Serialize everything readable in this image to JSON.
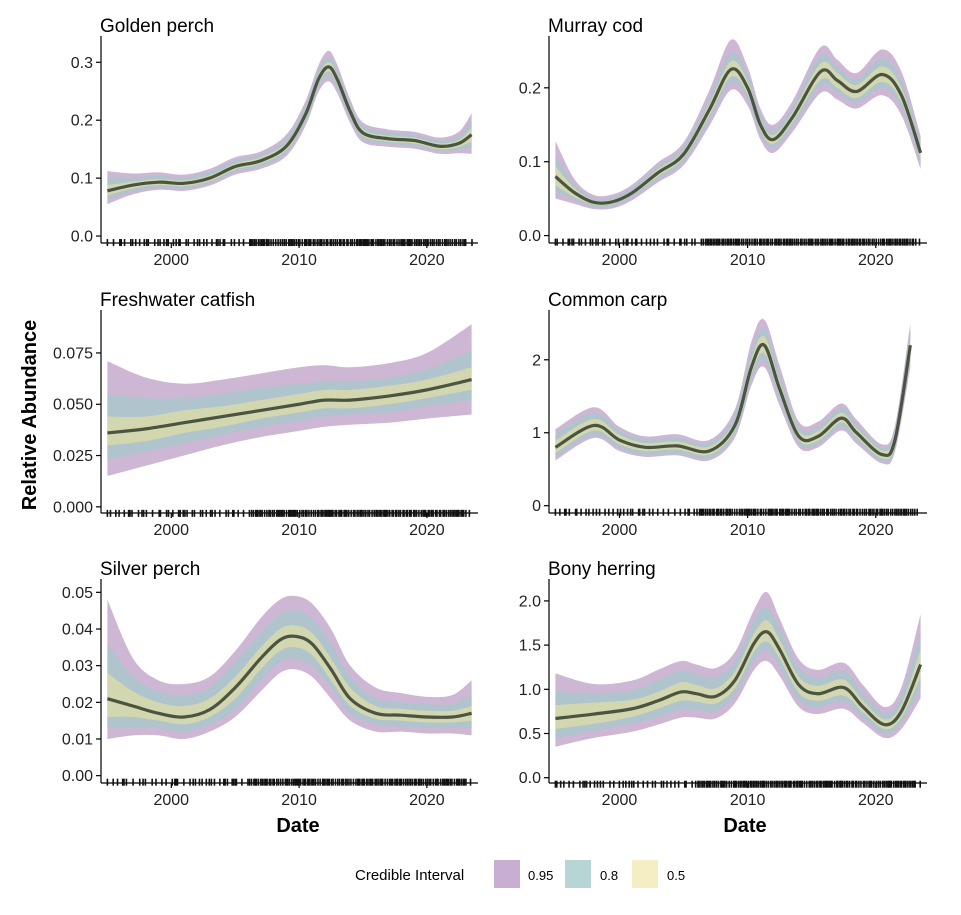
{
  "ylabel": "Relative Abundance",
  "xlabel": "Date",
  "legend": {
    "title": "Credible Interval",
    "items": [
      {
        "label": "0.95",
        "color": "#c8aed1"
      },
      {
        "label": "0.8",
        "color": "#b7d5d4"
      },
      {
        "label": "0.5",
        "color": "#f5eec4"
      }
    ]
  },
  "colors": {
    "band95": "#c4aacd",
    "band80": "#a9c7cb",
    "band50": "#d9daa9",
    "line": "#4b5440",
    "axis": "#000000"
  },
  "chart_data": [
    {
      "type": "line",
      "title": "Golden perch",
      "xlim": [
        1994.5,
        2024
      ],
      "ylim": [
        -0.012,
        0.335
      ],
      "xticks": [
        2000,
        2010,
        2020
      ],
      "xtick_labels": [
        "2000",
        "2010",
        "2020"
      ],
      "yticks": [
        0.0,
        0.1,
        0.2,
        0.3
      ],
      "ytick_labels": [
        "0.0",
        "0.1",
        "0.2",
        "0.3"
      ],
      "x": [
        1995,
        1997,
        1999,
        2001,
        2003,
        2005,
        2007,
        2009,
        2010.5,
        2011.5,
        2012.3,
        2013,
        2014,
        2015,
        2017,
        2019,
        2021,
        2022.5,
        2023.5
      ],
      "mean": [
        0.078,
        0.088,
        0.093,
        0.091,
        0.1,
        0.12,
        0.13,
        0.155,
        0.21,
        0.27,
        0.292,
        0.27,
        0.215,
        0.178,
        0.168,
        0.165,
        0.155,
        0.16,
        0.175
      ],
      "lo95": [
        0.055,
        0.072,
        0.08,
        0.078,
        0.087,
        0.106,
        0.116,
        0.138,
        0.19,
        0.248,
        0.267,
        0.246,
        0.195,
        0.162,
        0.154,
        0.151,
        0.142,
        0.143,
        0.142
      ],
      "hi95": [
        0.112,
        0.108,
        0.11,
        0.106,
        0.116,
        0.136,
        0.146,
        0.175,
        0.233,
        0.294,
        0.32,
        0.295,
        0.236,
        0.196,
        0.184,
        0.18,
        0.17,
        0.18,
        0.212
      ],
      "lo80": [
        0.063,
        0.077,
        0.084,
        0.082,
        0.091,
        0.111,
        0.12,
        0.144,
        0.197,
        0.256,
        0.276,
        0.254,
        0.202,
        0.168,
        0.159,
        0.156,
        0.147,
        0.149,
        0.153
      ],
      "hi80": [
        0.1,
        0.101,
        0.104,
        0.101,
        0.111,
        0.131,
        0.141,
        0.168,
        0.225,
        0.285,
        0.309,
        0.286,
        0.229,
        0.19,
        0.179,
        0.175,
        0.165,
        0.173,
        0.199
      ],
      "lo50": [
        0.07,
        0.082,
        0.088,
        0.086,
        0.095,
        0.115,
        0.125,
        0.149,
        0.203,
        0.263,
        0.284,
        0.262,
        0.208,
        0.173,
        0.163,
        0.16,
        0.15,
        0.154,
        0.163
      ],
      "hi50": [
        0.088,
        0.094,
        0.098,
        0.096,
        0.105,
        0.125,
        0.136,
        0.161,
        0.217,
        0.277,
        0.3,
        0.278,
        0.222,
        0.184,
        0.173,
        0.17,
        0.16,
        0.166,
        0.187
      ]
    },
    {
      "type": "line",
      "title": "Murray cod",
      "xlim": [
        1994.5,
        2024
      ],
      "ylim": [
        -0.01,
        0.262
      ],
      "xticks": [
        2000,
        2010,
        2020
      ],
      "xtick_labels": [
        "2000",
        "2010",
        "2020"
      ],
      "yticks": [
        0.0,
        0.1,
        0.2
      ],
      "ytick_labels": [
        "0.0",
        "0.1",
        "0.2"
      ],
      "x": [
        1995,
        1996.5,
        1998,
        1999.5,
        2001,
        2003,
        2005,
        2007,
        2008.7,
        2010,
        2011,
        2012,
        2013.5,
        2015.7,
        2017,
        2018.5,
        2020.5,
        2022,
        2023.5
      ],
      "mean": [
        0.08,
        0.058,
        0.045,
        0.046,
        0.058,
        0.085,
        0.11,
        0.17,
        0.225,
        0.2,
        0.15,
        0.13,
        0.16,
        0.222,
        0.21,
        0.195,
        0.218,
        0.19,
        0.112
      ],
      "lo95": [
        0.05,
        0.043,
        0.036,
        0.037,
        0.048,
        0.072,
        0.095,
        0.148,
        0.197,
        0.176,
        0.13,
        0.112,
        0.14,
        0.193,
        0.184,
        0.172,
        0.19,
        0.163,
        0.09
      ],
      "hi95": [
        0.128,
        0.076,
        0.055,
        0.056,
        0.069,
        0.099,
        0.126,
        0.196,
        0.265,
        0.228,
        0.172,
        0.15,
        0.182,
        0.255,
        0.238,
        0.22,
        0.252,
        0.222,
        0.135
      ],
      "lo80": [
        0.06,
        0.048,
        0.039,
        0.04,
        0.052,
        0.076,
        0.1,
        0.156,
        0.207,
        0.185,
        0.137,
        0.119,
        0.147,
        0.203,
        0.193,
        0.18,
        0.2,
        0.173,
        0.098
      ],
      "hi80": [
        0.108,
        0.069,
        0.051,
        0.052,
        0.065,
        0.094,
        0.12,
        0.186,
        0.248,
        0.218,
        0.164,
        0.142,
        0.174,
        0.243,
        0.228,
        0.211,
        0.24,
        0.21,
        0.127
      ],
      "lo50": [
        0.068,
        0.052,
        0.042,
        0.043,
        0.055,
        0.08,
        0.105,
        0.162,
        0.215,
        0.192,
        0.143,
        0.124,
        0.153,
        0.211,
        0.2,
        0.186,
        0.208,
        0.181,
        0.104
      ],
      "hi50": [
        0.094,
        0.064,
        0.048,
        0.049,
        0.061,
        0.09,
        0.115,
        0.178,
        0.236,
        0.209,
        0.157,
        0.136,
        0.167,
        0.233,
        0.22,
        0.204,
        0.229,
        0.2,
        0.12
      ]
    },
    {
      "type": "line",
      "title": "Freshwater catfish",
      "xlim": [
        1994.5,
        2024
      ],
      "ylim": [
        -0.003,
        0.093
      ],
      "xticks": [
        2000,
        2010,
        2020
      ],
      "xtick_labels": [
        "2000",
        "2010",
        "2020"
      ],
      "yticks": [
        0.0,
        0.025,
        0.05,
        0.075
      ],
      "ytick_labels": [
        "0.000",
        "0.025",
        "0.050",
        "0.075"
      ],
      "x": [
        1995,
        1998,
        2001,
        2004,
        2007,
        2010,
        2012,
        2014,
        2017,
        2020,
        2023.5
      ],
      "mean": [
        0.036,
        0.038,
        0.041,
        0.044,
        0.047,
        0.05,
        0.052,
        0.052,
        0.054,
        0.057,
        0.062
      ],
      "lo95": [
        0.015,
        0.02,
        0.025,
        0.03,
        0.034,
        0.037,
        0.039,
        0.04,
        0.041,
        0.043,
        0.045
      ],
      "hi95": [
        0.071,
        0.063,
        0.06,
        0.062,
        0.065,
        0.068,
        0.069,
        0.068,
        0.07,
        0.075,
        0.089
      ],
      "lo80": [
        0.023,
        0.027,
        0.031,
        0.035,
        0.039,
        0.042,
        0.044,
        0.045,
        0.046,
        0.049,
        0.052
      ],
      "hi80": [
        0.055,
        0.053,
        0.053,
        0.055,
        0.058,
        0.06,
        0.061,
        0.061,
        0.063,
        0.067,
        0.076
      ],
      "lo50": [
        0.03,
        0.032,
        0.036,
        0.039,
        0.043,
        0.046,
        0.048,
        0.048,
        0.05,
        0.053,
        0.057
      ],
      "hi50": [
        0.044,
        0.044,
        0.047,
        0.049,
        0.052,
        0.055,
        0.057,
        0.057,
        0.059,
        0.062,
        0.068
      ]
    },
    {
      "type": "line",
      "title": "Common carp",
      "xlim": [
        1994.5,
        2024
      ],
      "ylim": [
        -0.1,
        2.6
      ],
      "xticks": [
        2000,
        2010,
        2020
      ],
      "xtick_labels": [
        "2000",
        "2010",
        "2020"
      ],
      "yticks": [
        0,
        1,
        2
      ],
      "ytick_labels": [
        "0",
        "1",
        "2"
      ],
      "x": [
        1995,
        1998,
        2000,
        2002,
        2004.5,
        2007,
        2009,
        2010.3,
        2011.3,
        2012.5,
        2014,
        2015.5,
        2017.3,
        2018.5,
        2020.5,
        2021.5,
        2022.7
      ],
      "mean": [
        0.8,
        1.1,
        0.9,
        0.8,
        0.82,
        0.75,
        1.1,
        1.9,
        2.2,
        1.6,
        0.95,
        0.95,
        1.2,
        1.0,
        0.7,
        0.9,
        2.2
      ],
      "lo95": [
        0.62,
        0.93,
        0.75,
        0.67,
        0.69,
        0.62,
        0.93,
        1.65,
        1.9,
        1.37,
        0.8,
        0.8,
        1.03,
        0.85,
        0.58,
        0.74,
        1.9
      ],
      "hi95": [
        1.05,
        1.35,
        1.08,
        0.95,
        0.98,
        0.9,
        1.32,
        2.25,
        2.55,
        1.92,
        1.15,
        1.15,
        1.4,
        1.18,
        0.84,
        1.1,
        2.5
      ],
      "lo80": [
        0.66,
        0.97,
        0.79,
        0.7,
        0.72,
        0.65,
        0.98,
        1.72,
        1.99,
        1.44,
        0.85,
        0.84,
        1.08,
        0.89,
        0.61,
        0.78,
        1.98
      ],
      "hi80": [
        0.98,
        1.27,
        1.03,
        0.91,
        0.93,
        0.86,
        1.25,
        2.12,
        2.43,
        1.81,
        1.08,
        1.08,
        1.34,
        1.12,
        0.8,
        1.04,
        2.4
      ],
      "lo50": [
        0.72,
        1.03,
        0.84,
        0.75,
        0.77,
        0.7,
        1.04,
        1.81,
        2.09,
        1.52,
        0.9,
        0.89,
        1.14,
        0.94,
        0.65,
        0.84,
        2.08
      ],
      "hi50": [
        0.89,
        1.19,
        0.97,
        0.86,
        0.88,
        0.81,
        1.17,
        2.01,
        2.32,
        1.7,
        1.02,
        1.02,
        1.27,
        1.06,
        0.76,
        0.97,
        2.3
      ]
    },
    {
      "type": "line",
      "title": "Silver perch",
      "xlim": [
        1994.5,
        2024
      ],
      "ylim": [
        -0.002,
        0.052
      ],
      "xticks": [
        2000,
        2010,
        2020
      ],
      "xtick_labels": [
        "2000",
        "2010",
        "2020"
      ],
      "yticks": [
        0.0,
        0.01,
        0.02,
        0.03,
        0.04,
        0.05
      ],
      "ytick_labels": [
        "0.00",
        "0.01",
        "0.02",
        "0.03",
        "0.04",
        "0.05"
      ],
      "x": [
        1995,
        1997,
        1999,
        2001,
        2003,
        2005,
        2007,
        2008.5,
        2009.7,
        2011,
        2012.5,
        2014,
        2016,
        2018,
        2020,
        2022,
        2023.5
      ],
      "mean": [
        0.021,
        0.019,
        0.017,
        0.016,
        0.018,
        0.024,
        0.032,
        0.037,
        0.038,
        0.036,
        0.029,
        0.021,
        0.017,
        0.0165,
        0.016,
        0.016,
        0.017
      ],
      "lo95": [
        0.01,
        0.011,
        0.011,
        0.01,
        0.012,
        0.016,
        0.023,
        0.028,
        0.029,
        0.027,
        0.021,
        0.015,
        0.012,
        0.012,
        0.0115,
        0.0115,
        0.011
      ],
      "hi95": [
        0.048,
        0.032,
        0.026,
        0.025,
        0.027,
        0.034,
        0.043,
        0.048,
        0.049,
        0.047,
        0.04,
        0.03,
        0.024,
        0.0225,
        0.0215,
        0.022,
        0.026
      ],
      "lo80": [
        0.013,
        0.013,
        0.013,
        0.012,
        0.014,
        0.018,
        0.026,
        0.031,
        0.032,
        0.03,
        0.024,
        0.017,
        0.014,
        0.0135,
        0.013,
        0.013,
        0.013
      ],
      "hi80": [
        0.036,
        0.027,
        0.023,
        0.022,
        0.024,
        0.031,
        0.039,
        0.044,
        0.045,
        0.043,
        0.036,
        0.027,
        0.021,
        0.02,
        0.0195,
        0.0195,
        0.022
      ],
      "lo50": [
        0.016,
        0.016,
        0.015,
        0.014,
        0.016,
        0.021,
        0.029,
        0.034,
        0.035,
        0.033,
        0.026,
        0.019,
        0.0155,
        0.015,
        0.0145,
        0.0145,
        0.015
      ],
      "hi50": [
        0.028,
        0.023,
        0.02,
        0.019,
        0.021,
        0.027,
        0.035,
        0.04,
        0.041,
        0.039,
        0.032,
        0.024,
        0.019,
        0.0182,
        0.0177,
        0.0177,
        0.019
      ]
    },
    {
      "type": "line",
      "title": "Bony herring",
      "xlim": [
        1994.5,
        2024
      ],
      "ylim": [
        -0.06,
        2.18
      ],
      "xticks": [
        2000,
        2010,
        2020
      ],
      "xtick_labels": [
        "2000",
        "2010",
        "2020"
      ],
      "yticks": [
        0.0,
        0.5,
        1.0,
        1.5,
        2.0
      ],
      "ytick_labels": [
        "0.0",
        "0.5",
        "1.0",
        "1.5",
        "2.0"
      ],
      "x": [
        1995,
        1998,
        2001,
        2003,
        2004.8,
        2006,
        2007.5,
        2009,
        2010.5,
        2011.5,
        2012.5,
        2014,
        2015.5,
        2017.5,
        2019,
        2020.7,
        2022,
        2023.5
      ],
      "mean": [
        0.67,
        0.72,
        0.78,
        0.87,
        0.97,
        0.95,
        0.92,
        1.1,
        1.52,
        1.65,
        1.45,
        1.05,
        0.95,
        1.02,
        0.8,
        0.6,
        0.75,
        1.28
      ],
      "lo95": [
        0.35,
        0.45,
        0.52,
        0.6,
        0.68,
        0.68,
        0.67,
        0.84,
        1.22,
        1.32,
        1.15,
        0.8,
        0.72,
        0.78,
        0.62,
        0.45,
        0.55,
        0.9
      ],
      "hi95": [
        1.18,
        1.06,
        1.1,
        1.22,
        1.32,
        1.28,
        1.24,
        1.42,
        1.9,
        2.1,
        1.8,
        1.34,
        1.22,
        1.3,
        1.05,
        0.8,
        1.02,
        1.85
      ],
      "lo80": [
        0.45,
        0.53,
        0.61,
        0.69,
        0.77,
        0.77,
        0.75,
        0.93,
        1.32,
        1.44,
        1.25,
        0.88,
        0.8,
        0.86,
        0.68,
        0.5,
        0.62,
        1.02
      ],
      "hi80": [
        0.98,
        0.95,
        0.99,
        1.1,
        1.21,
        1.17,
        1.13,
        1.32,
        1.78,
        1.93,
        1.69,
        1.25,
        1.13,
        1.21,
        0.96,
        0.73,
        0.92,
        1.65
      ],
      "lo50": [
        0.55,
        0.61,
        0.69,
        0.78,
        0.87,
        0.86,
        0.84,
        1.01,
        1.42,
        1.54,
        1.35,
        0.96,
        0.87,
        0.93,
        0.74,
        0.55,
        0.68,
        1.14
      ],
      "hi50": [
        0.82,
        0.85,
        0.88,
        0.97,
        1.08,
        1.05,
        1.01,
        1.2,
        1.63,
        1.78,
        1.56,
        1.14,
        1.04,
        1.11,
        0.87,
        0.66,
        0.83,
        1.45
      ]
    }
  ]
}
